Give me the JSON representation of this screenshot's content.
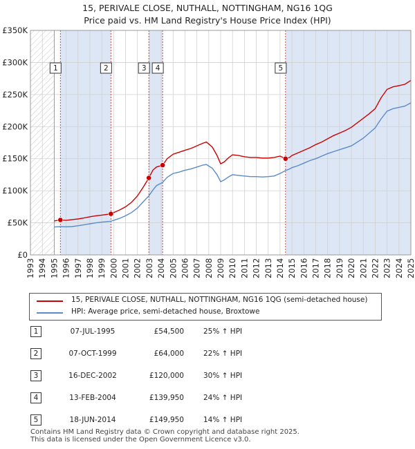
{
  "title": {
    "line1": "15, PERIVALE CLOSE, NUTHALL, NOTTINGHAM, NG16 1QG",
    "line2": "Price paid vs. HM Land Registry's House Price Index (HPI)"
  },
  "colors": {
    "price_paid": "#cc0000",
    "hpi": "#5b8ac8",
    "shaded_band": "#dde6f5",
    "marker_line": "#cc3333",
    "grid": "#d0d0d0"
  },
  "chart_data": {
    "type": "line",
    "title": "Price paid vs. HM Land Registry's House Price Index (HPI)",
    "xlabel": "",
    "ylabel": "",
    "xlim": [
      1993,
      2025
    ],
    "ylim": [
      0,
      350000
    ],
    "x_ticks": [
      "1993",
      "1994",
      "1995",
      "1996",
      "1997",
      "1998",
      "1999",
      "2000",
      "2001",
      "2002",
      "2003",
      "2004",
      "2005",
      "2006",
      "2007",
      "2008",
      "2009",
      "2010",
      "2011",
      "2012",
      "2013",
      "2014",
      "2015",
      "2016",
      "2017",
      "2018",
      "2019",
      "2020",
      "2021",
      "2022",
      "2023",
      "2024",
      "2025"
    ],
    "y_ticks": [
      {
        "value": 0,
        "label": "£0"
      },
      {
        "value": 50000,
        "label": "£50K"
      },
      {
        "value": 100000,
        "label": "£100K"
      },
      {
        "value": 150000,
        "label": "£150K"
      },
      {
        "value": 200000,
        "label": "£200K"
      },
      {
        "value": 250000,
        "label": "£250K"
      },
      {
        "value": 300000,
        "label": "£300K"
      },
      {
        "value": 350000,
        "label": "£350K"
      }
    ],
    "data_start": 1995.0,
    "shaded_ranges": [
      [
        1995.52,
        1999.77
      ],
      [
        2002.96,
        2004.12
      ],
      [
        2014.46,
        2025.0
      ]
    ],
    "series": [
      {
        "name": "15, PERIVALE CLOSE, NUTHALL, NOTTINGHAM, NG16 1QG (semi-detached house)",
        "color": "#cc0000",
        "points": [
          [
            1995.0,
            53000
          ],
          [
            1995.52,
            54500
          ],
          [
            1996.0,
            54000
          ],
          [
            1996.5,
            55000
          ],
          [
            1997.0,
            56000
          ],
          [
            1997.5,
            57500
          ],
          [
            1998.0,
            59500
          ],
          [
            1998.5,
            61000
          ],
          [
            1999.0,
            62000
          ],
          [
            1999.77,
            64000
          ],
          [
            2000.0,
            66000
          ],
          [
            2000.5,
            70000
          ],
          [
            2001.0,
            75000
          ],
          [
            2001.5,
            82000
          ],
          [
            2002.0,
            92000
          ],
          [
            2002.5,
            106000
          ],
          [
            2002.96,
            120000
          ],
          [
            2003.3,
            132000
          ],
          [
            2003.6,
            137000
          ],
          [
            2004.12,
            139950
          ],
          [
            2004.5,
            150000
          ],
          [
            2005.0,
            157000
          ],
          [
            2005.5,
            160000
          ],
          [
            2006.0,
            163000
          ],
          [
            2006.5,
            166000
          ],
          [
            2007.0,
            170000
          ],
          [
            2007.5,
            174000
          ],
          [
            2007.8,
            176000
          ],
          [
            2008.3,
            168000
          ],
          [
            2008.7,
            155000
          ],
          [
            2009.0,
            142000
          ],
          [
            2009.3,
            145000
          ],
          [
            2009.7,
            152000
          ],
          [
            2010.0,
            156000
          ],
          [
            2010.5,
            155000
          ],
          [
            2011.0,
            153000
          ],
          [
            2011.5,
            152000
          ],
          [
            2012.0,
            152000
          ],
          [
            2012.5,
            151000
          ],
          [
            2013.0,
            151000
          ],
          [
            2013.5,
            152000
          ],
          [
            2014.0,
            154000
          ],
          [
            2014.46,
            149950
          ],
          [
            2014.8,
            152000
          ],
          [
            2015.0,
            155000
          ],
          [
            2015.5,
            159000
          ],
          [
            2016.0,
            163000
          ],
          [
            2016.5,
            167000
          ],
          [
            2017.0,
            172000
          ],
          [
            2017.5,
            176000
          ],
          [
            2018.0,
            181000
          ],
          [
            2018.5,
            186000
          ],
          [
            2019.0,
            190000
          ],
          [
            2019.5,
            194000
          ],
          [
            2020.0,
            199000
          ],
          [
            2020.5,
            206000
          ],
          [
            2021.0,
            213000
          ],
          [
            2021.5,
            220000
          ],
          [
            2022.0,
            228000
          ],
          [
            2022.5,
            245000
          ],
          [
            2023.0,
            258000
          ],
          [
            2023.5,
            262000
          ],
          [
            2024.0,
            264000
          ],
          [
            2024.5,
            266000
          ],
          [
            2025.0,
            272000
          ]
        ]
      },
      {
        "name": "HPI: Average price, semi-detached house, Broxtowe",
        "color": "#5b8ac8",
        "points": [
          [
            1995.0,
            43500
          ],
          [
            1995.52,
            44000
          ],
          [
            1996.0,
            43800
          ],
          [
            1996.5,
            44200
          ],
          [
            1997.0,
            45500
          ],
          [
            1997.5,
            47000
          ],
          [
            1998.0,
            48500
          ],
          [
            1998.5,
            50000
          ],
          [
            1999.0,
            51000
          ],
          [
            1999.77,
            52500
          ],
          [
            2000.0,
            54000
          ],
          [
            2000.5,
            57000
          ],
          [
            2001.0,
            61000
          ],
          [
            2001.5,
            66000
          ],
          [
            2002.0,
            73000
          ],
          [
            2002.5,
            83000
          ],
          [
            2002.96,
            92000
          ],
          [
            2003.3,
            101000
          ],
          [
            2003.6,
            108000
          ],
          [
            2004.12,
            113000
          ],
          [
            2004.5,
            121000
          ],
          [
            2005.0,
            127000
          ],
          [
            2005.5,
            129000
          ],
          [
            2006.0,
            132000
          ],
          [
            2006.5,
            134000
          ],
          [
            2007.0,
            137000
          ],
          [
            2007.5,
            140000
          ],
          [
            2007.8,
            141000
          ],
          [
            2008.3,
            135000
          ],
          [
            2008.7,
            125000
          ],
          [
            2009.0,
            114000
          ],
          [
            2009.3,
            117000
          ],
          [
            2009.7,
            122000
          ],
          [
            2010.0,
            125000
          ],
          [
            2010.5,
            124000
          ],
          [
            2011.0,
            123000
          ],
          [
            2011.5,
            122000
          ],
          [
            2012.0,
            122000
          ],
          [
            2012.5,
            121500
          ],
          [
            2013.0,
            122000
          ],
          [
            2013.5,
            123000
          ],
          [
            2014.0,
            127000
          ],
          [
            2014.46,
            131500
          ],
          [
            2014.8,
            134000
          ],
          [
            2015.0,
            136000
          ],
          [
            2015.5,
            139000
          ],
          [
            2016.0,
            143000
          ],
          [
            2016.5,
            147000
          ],
          [
            2017.0,
            150000
          ],
          [
            2017.5,
            154000
          ],
          [
            2018.0,
            158000
          ],
          [
            2018.5,
            161000
          ],
          [
            2019.0,
            164000
          ],
          [
            2019.5,
            167000
          ],
          [
            2020.0,
            170000
          ],
          [
            2020.5,
            176000
          ],
          [
            2021.0,
            182000
          ],
          [
            2021.5,
            190000
          ],
          [
            2022.0,
            198000
          ],
          [
            2022.5,
            212000
          ],
          [
            2023.0,
            224000
          ],
          [
            2023.5,
            228000
          ],
          [
            2024.0,
            230000
          ],
          [
            2024.5,
            232000
          ],
          [
            2025.0,
            237000
          ]
        ]
      }
    ],
    "sales": [
      {
        "id": "1",
        "x": 1995.52,
        "price": 54500
      },
      {
        "id": "2",
        "x": 1999.77,
        "price": 64000
      },
      {
        "id": "3",
        "x": 2002.96,
        "price": 120000
      },
      {
        "id": "4",
        "x": 2004.12,
        "price": 139950
      },
      {
        "id": "5",
        "x": 2014.46,
        "price": 149950
      }
    ]
  },
  "legend": {
    "price_label": "15, PERIVALE CLOSE, NUTHALL, NOTTINGHAM, NG16 1QG (semi-detached house)",
    "hpi_label": "HPI: Average price, semi-detached house, Broxtowe"
  },
  "transactions": [
    {
      "num": "1",
      "date": "07-JUL-1995",
      "price": "£54,500",
      "hpi": "25% ↑ HPI"
    },
    {
      "num": "2",
      "date": "07-OCT-1999",
      "price": "£64,000",
      "hpi": "22% ↑ HPI"
    },
    {
      "num": "3",
      "date": "16-DEC-2002",
      "price": "£120,000",
      "hpi": "30% ↑ HPI"
    },
    {
      "num": "4",
      "date": "13-FEB-2004",
      "price": "£139,950",
      "hpi": "24% ↑ HPI"
    },
    {
      "num": "5",
      "date": "18-JUN-2014",
      "price": "£149,950",
      "hpi": "14% ↑ HPI"
    }
  ],
  "footer": {
    "line1": "Contains HM Land Registry data © Crown copyright and database right 2025.",
    "line2": "This data is licensed under the Open Government Licence v3.0."
  }
}
